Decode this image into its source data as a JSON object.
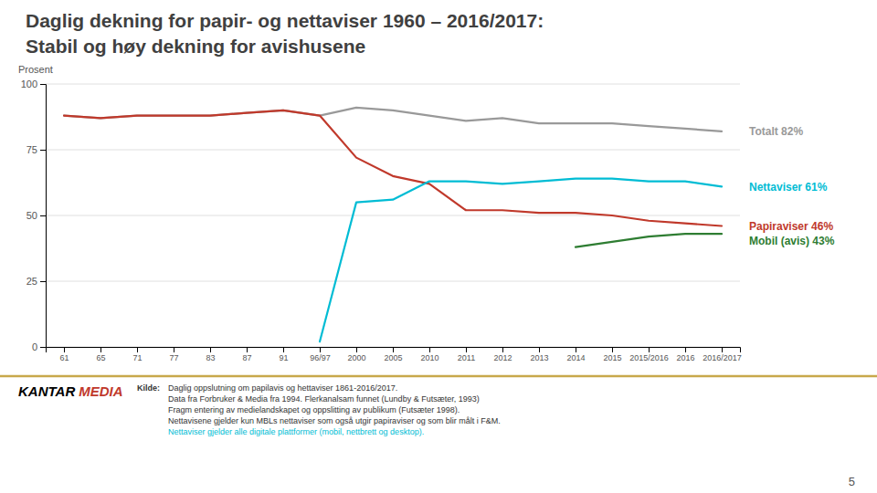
{
  "chart_data": {
    "type": "line",
    "title": "Daglig dekning for papir- og nettaviser 1960 – 2016/2017:",
    "subtitle": "Stabil og høy dekning for avishusene",
    "y_label": "Prosent",
    "categories": [
      "61",
      "65",
      "71",
      "77",
      "83",
      "87",
      "91",
      "96/97",
      "2000",
      "2005",
      "2010",
      "2011",
      "2012",
      "2013",
      "2014",
      "2015",
      "2015/2016",
      "2016",
      "2016/2017"
    ],
    "ylim": [
      0,
      100
    ],
    "yticks": [
      0,
      25,
      50,
      75,
      100
    ],
    "grid": true,
    "series": [
      {
        "name": "Totalt 82%",
        "color": "#999999",
        "values": [
          88,
          87,
          88,
          88,
          88,
          89,
          90,
          88,
          91,
          90,
          88,
          86,
          87,
          85,
          85,
          85,
          84,
          83,
          82
        ]
      },
      {
        "name": "Papiraviser 46%",
        "color": "#c0392b",
        "values": [
          88,
          87,
          88,
          88,
          88,
          89,
          90,
          88,
          72,
          65,
          62,
          52,
          52,
          51,
          51,
          50,
          48,
          47,
          46
        ]
      },
      {
        "name": "Nettaviser 61%",
        "color": "#00bcd4",
        "values": [
          null,
          null,
          null,
          null,
          null,
          null,
          null,
          2,
          55,
          56,
          63,
          63,
          62,
          63,
          64,
          64,
          63,
          63,
          61
        ]
      },
      {
        "name": "Mobil (avis) 43%",
        "color": "#2e7d32",
        "values": [
          null,
          null,
          null,
          null,
          null,
          null,
          null,
          null,
          null,
          null,
          null,
          null,
          null,
          null,
          38,
          40,
          42,
          43,
          43
        ]
      }
    ],
    "annotations": [
      "Kilde:",
      "Daglig oppslutning om papilavis og hettaviser 1861-2016/2017.",
      "Data fra Forbruker & Media fra 1994. Flerkanalsam funnet (Lundby & Futsæter, 1993)",
      "Fragm entering av medielandskapet og oppslitting av publikum (Futsæter 1998).",
      "Nettavisene gjelder kun MBLs nettaviser som også utgir papiraviser og som blir målt i F&M.",
      "Nettaviser gjelder alle digitale plattformer (mobil, nettbrett og desktop).",
      "KANTAR",
      "MEDIA",
      "5"
    ]
  }
}
